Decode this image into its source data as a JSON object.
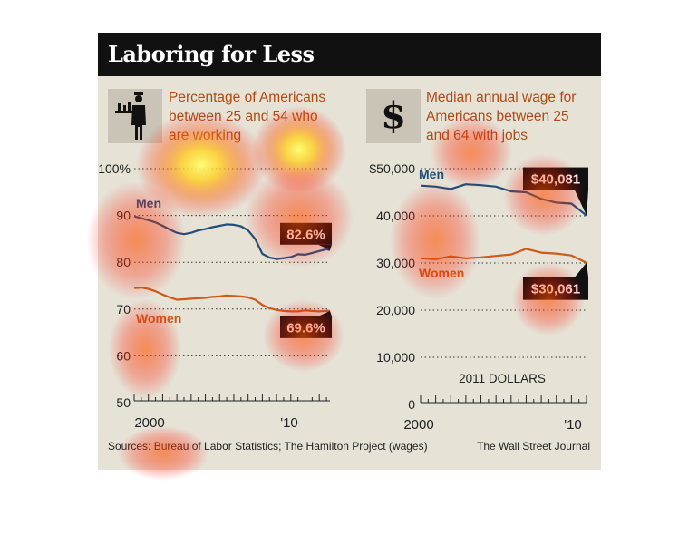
{
  "header": {
    "title": "Laboring for Less"
  },
  "panels": {
    "left": {
      "headline": [
        "Percentage of Americans",
        "between 25 and 54 who",
        "are working"
      ],
      "icon": "waiter-icon"
    },
    "right": {
      "headline": [
        "Median annual wage for",
        "Americans between 25",
        "and 64 with jobs"
      ],
      "icon": "dollar-icon",
      "icon_glyph": "$"
    }
  },
  "footer": {
    "sources": "Sources: Bureau of Labor Statistics; The Hamilton Project (wages)",
    "credit": "The Wall Street Journal"
  },
  "colors": {
    "men": "#1f4f7a",
    "women": "#cc5a1a",
    "headline": "#b04a14",
    "callout_bg": "#111111",
    "background": "#e6e2d6"
  },
  "chart_data": [
    {
      "type": "line",
      "ylim": [
        50,
        100
      ],
      "yticks": [
        "100%",
        "90",
        "80",
        "70",
        "60",
        "50"
      ],
      "xtick_labels": [
        "2000",
        "'10"
      ],
      "xlim": [
        2000,
        2013.75
      ],
      "grid": true,
      "series": [
        {
          "name": "Men",
          "color": "#1f4f7a",
          "x": [
            2000,
            2000.5,
            2001,
            2001.5,
            2002,
            2002.5,
            2003,
            2003.5,
            2004,
            2004.5,
            2005,
            2005.5,
            2006,
            2006.5,
            2007,
            2007.5,
            2008,
            2008.5,
            2009,
            2009.5,
            2010,
            2010.5,
            2011,
            2011.5,
            2012,
            2012.5,
            2013,
            2013.5,
            2013.75
          ],
          "values": [
            89.8,
            89.4,
            89.0,
            88.5,
            87.8,
            87.0,
            86.3,
            86.0,
            86.3,
            86.8,
            87.1,
            87.5,
            87.8,
            88.1,
            88.0,
            87.7,
            86.8,
            85.0,
            81.8,
            81.0,
            80.7,
            80.9,
            81.1,
            81.7,
            81.6,
            82.0,
            82.4,
            82.8,
            82.6
          ],
          "end_label": "82.6%"
        },
        {
          "name": "Women",
          "color": "#cc5a1a",
          "x": [
            2000,
            2000.5,
            2001,
            2001.5,
            2002,
            2002.5,
            2003,
            2003.5,
            2004,
            2004.5,
            2005,
            2005.5,
            2006,
            2006.5,
            2007,
            2007.5,
            2008,
            2008.5,
            2009,
            2009.5,
            2010,
            2010.5,
            2011,
            2011.5,
            2012,
            2012.5,
            2013,
            2013.5,
            2013.75
          ],
          "values": [
            74.5,
            74.6,
            74.3,
            73.8,
            73.1,
            72.5,
            72.0,
            72.1,
            72.2,
            72.3,
            72.4,
            72.6,
            72.7,
            72.9,
            72.8,
            72.7,
            72.5,
            72.0,
            70.9,
            70.2,
            69.8,
            69.6,
            69.5,
            69.5,
            69.7,
            69.6,
            69.5,
            69.6,
            69.6
          ],
          "end_label": "69.6%"
        }
      ]
    },
    {
      "type": "line",
      "ylim": [
        0,
        50000
      ],
      "yticks": [
        "$50,000",
        "40,000",
        "30,000",
        "20,000",
        "10,000",
        "0"
      ],
      "xtick_labels": [
        "2000",
        "'10"
      ],
      "xlim": [
        2000,
        2011
      ],
      "grid": true,
      "annotation": "2011 DOLLARS",
      "series": [
        {
          "name": "Men",
          "color": "#1f4f7a",
          "x": [
            2000,
            2001,
            2002,
            2003,
            2004,
            2005,
            2006,
            2007,
            2008,
            2009,
            2010,
            2011
          ],
          "values": [
            46400,
            46200,
            45700,
            46700,
            46500,
            46200,
            45200,
            45000,
            43600,
            42800,
            42600,
            40081
          ],
          "end_label": "$40,081"
        },
        {
          "name": "Women",
          "color": "#cc5a1a",
          "x": [
            2000,
            2001,
            2002,
            2003,
            2004,
            2005,
            2006,
            2007,
            2008,
            2009,
            2010,
            2011
          ],
          "values": [
            31000,
            30800,
            31400,
            31000,
            31200,
            31500,
            31800,
            33000,
            32200,
            32000,
            31600,
            30061
          ],
          "end_label": "$30,061"
        }
      ]
    }
  ]
}
